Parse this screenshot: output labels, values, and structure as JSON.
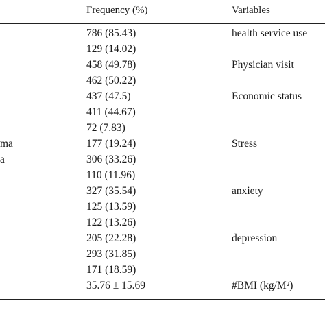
{
  "table": {
    "headers": {
      "frequency": "Frequency (%)",
      "variables": "Variables"
    },
    "rows": [
      {
        "left": "",
        "frequency": "786 (85.43)",
        "variable": "health service use"
      },
      {
        "left": "",
        "frequency": "129 (14.02)",
        "variable": ""
      },
      {
        "left": "",
        "frequency": "458 (49.78)",
        "variable": "Physician visit"
      },
      {
        "left": "",
        "frequency": "462 (50.22)",
        "variable": ""
      },
      {
        "left": "",
        "frequency": "437 (47.5)",
        "variable": "Economic status"
      },
      {
        "left": "",
        "frequency": "411 (44.67)",
        "variable": ""
      },
      {
        "left": "",
        "frequency": "72 (7.83)",
        "variable": ""
      },
      {
        "left": "ma",
        "frequency": "177 (19.24)",
        "variable": "Stress"
      },
      {
        "left": "a",
        "frequency": "306 (33.26)",
        "variable": ""
      },
      {
        "left": "",
        "frequency": "110 (11.96)",
        "variable": ""
      },
      {
        "left": "",
        "frequency": "327 (35.54)",
        "variable": "anxiety"
      },
      {
        "left": "",
        "frequency": "125 (13.59)",
        "variable": ""
      },
      {
        "left": "",
        "frequency": "122 (13.26)",
        "variable": ""
      },
      {
        "left": "",
        "frequency": "205 (22.28)",
        "variable": "depression"
      },
      {
        "left": "",
        "frequency": "293 (31.85)",
        "variable": ""
      },
      {
        "left": "",
        "frequency": "171 (18.59)",
        "variable": ""
      },
      {
        "left": "",
        "frequency": "35.76 ± 15.69",
        "variable": "#BMI (kg/M²)"
      }
    ]
  }
}
